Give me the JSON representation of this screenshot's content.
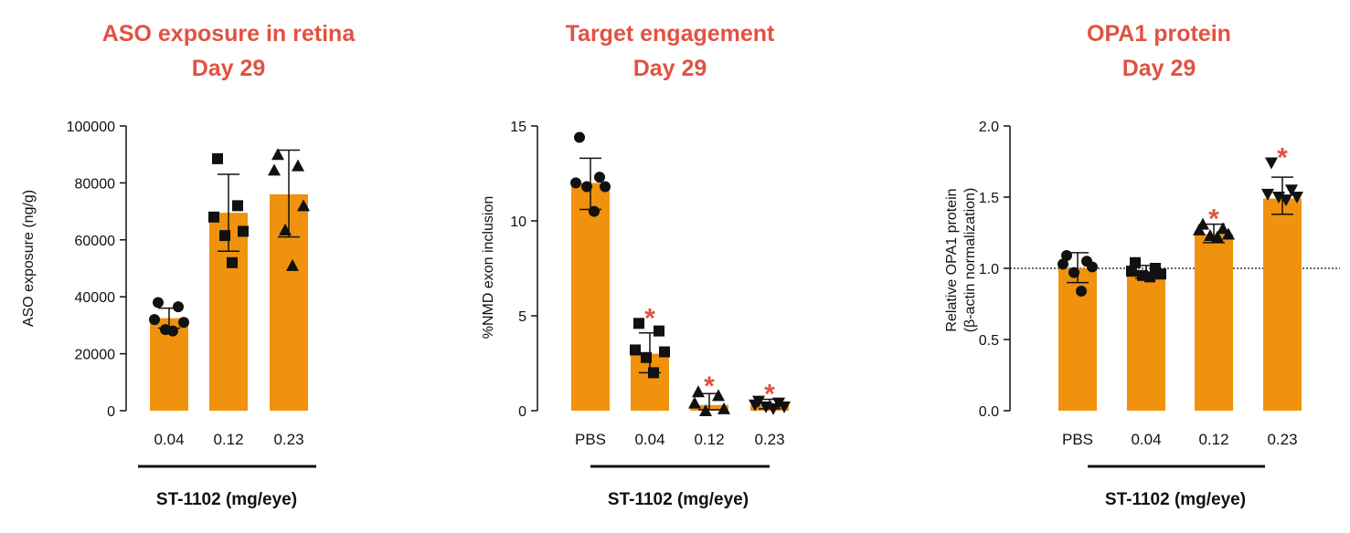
{
  "chart_data": [
    {
      "type": "bar",
      "title": "ASO exposure in retina",
      "subtitle": "Day 29",
      "xlabel": "ST-1102 (mg/eye)",
      "ylabel": "ASO exposure (ng/g)",
      "categories": [
        "0.04",
        "0.12",
        "0.23"
      ],
      "values": [
        32500,
        69500,
        76000
      ],
      "error": [
        [
          29000,
          36000
        ],
        [
          56000,
          83000
        ],
        [
          61000,
          91500
        ]
      ],
      "points": [
        [
          38000,
          36500,
          32000,
          31000,
          28500,
          28000
        ],
        [
          88500,
          72000,
          68000,
          63000,
          61500,
          52000
        ],
        [
          90000,
          86000,
          84500,
          72000,
          63500,
          51000
        ]
      ],
      "markers": [
        "circle",
        "square",
        "triangle-up"
      ],
      "ylim": [
        0,
        100000
      ],
      "yticks": [
        "0",
        "20000",
        "40000",
        "60000",
        "80000",
        "100000"
      ],
      "color": "#f0920e",
      "significant": [
        false,
        false,
        false
      ]
    },
    {
      "type": "bar",
      "title": "Target engagement",
      "subtitle": "Day 29",
      "xlabel": "ST-1102 (mg/eye)",
      "ylabel": "%NMD exon inclusion",
      "categories": [
        "PBS",
        "0.04",
        "0.12",
        "0.23"
      ],
      "values": [
        12,
        3,
        0.3,
        0.3
      ],
      "error": [
        [
          10.6,
          13.3
        ],
        [
          2.0,
          4.1
        ],
        [
          0.05,
          0.9
        ],
        [
          0.1,
          0.6
        ]
      ],
      "points": [
        [
          14.4,
          12.3,
          12.0,
          11.8,
          11.8,
          10.5
        ],
        [
          4.6,
          4.2,
          3.2,
          3.1,
          2.8,
          2.0
        ],
        [
          1.0,
          0.8,
          0.4,
          0.1,
          0.0
        ],
        [
          0.5,
          0.4,
          0.3,
          0.2,
          0.2,
          0.1
        ]
      ],
      "markers": [
        "circle",
        "square",
        "triangle-up",
        "triangle-down"
      ],
      "ylim": [
        0,
        15
      ],
      "yticks": [
        "0",
        "5",
        "10",
        "15"
      ],
      "color": "#f0920e",
      "significant": [
        false,
        true,
        true,
        true
      ],
      "significance_symbol": "*"
    },
    {
      "type": "bar",
      "title": "OPA1 protein",
      "subtitle": "Day 29",
      "xlabel": "ST-1102 (mg/eye)",
      "ylabel": "Relative OPA1 protein",
      "ylabel2": "(β-actin normalization)",
      "categories": [
        "PBS",
        "0.04",
        "0.12",
        "0.23"
      ],
      "values": [
        1.0,
        0.97,
        1.24,
        1.49
      ],
      "error": [
        [
          0.9,
          1.11
        ],
        [
          0.93,
          1.02
        ],
        [
          1.18,
          1.31
        ],
        [
          1.38,
          1.64
        ]
      ],
      "points": [
        [
          1.09,
          1.05,
          1.03,
          1.01,
          0.97,
          0.84
        ],
        [
          1.04,
          1.0,
          0.98,
          0.96,
          0.95,
          0.94
        ],
        [
          1.31,
          1.28,
          1.27,
          1.24,
          1.23,
          1.22
        ],
        [
          1.74,
          1.55,
          1.52,
          1.5,
          1.5,
          1.48
        ]
      ],
      "markers": [
        "circle",
        "square",
        "triangle-up",
        "triangle-down"
      ],
      "ylim": [
        0,
        2.0
      ],
      "yticks": [
        "0.0",
        "0.5",
        "1.0",
        "1.5",
        "2.0"
      ],
      "reference_line": 1.0,
      "color": "#f0920e",
      "significant": [
        false,
        false,
        true,
        true
      ],
      "significance_symbol": "*"
    }
  ]
}
